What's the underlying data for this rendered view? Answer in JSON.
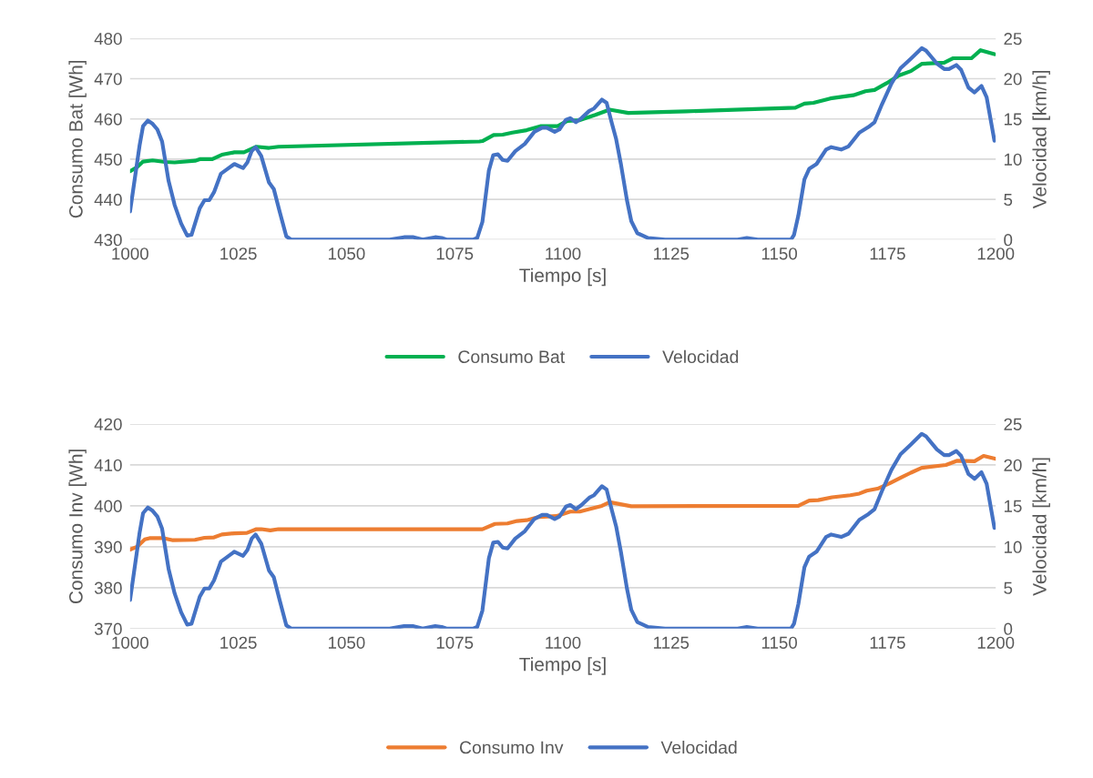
{
  "chart_data": [
    {
      "type": "line",
      "xlabel": "Tiempo [s]",
      "ylabel": "Consumo Bat [Wh]",
      "y2label": "Velocidad [km/h]",
      "xlim": [
        1000,
        1200
      ],
      "xticks": [
        1000,
        1025,
        1050,
        1075,
        1100,
        1125,
        1150,
        1175,
        1200
      ],
      "ylim": [
        430,
        480
      ],
      "yticks": [
        430,
        440,
        450,
        460,
        470,
        480
      ],
      "y2lim": [
        0,
        25
      ],
      "y2ticks": [
        0,
        5,
        10,
        15,
        20,
        25
      ],
      "grid": "y",
      "legend": "bottom",
      "line_style": "solid",
      "marker": "none",
      "series": [
        {
          "name": "Consumo Bat",
          "color": "#00b050",
          "x": [
            1000,
            1001.6,
            1003,
            1005.2,
            1008.1,
            1010.3,
            1015,
            1016.1,
            1019,
            1021.2,
            1024.1,
            1026.3,
            1029.2,
            1032.1,
            1034.3,
            1080.7,
            1081.4,
            1084,
            1086.1,
            1088.3,
            1091.6,
            1094.8,
            1098.8,
            1101,
            1103.9,
            1107.5,
            1110.8,
            1115.1,
            1128.5,
            1153.7,
            1155.8,
            1157.9,
            1161.8,
            1167.1,
            1169.9,
            1172,
            1174.8,
            1177.6,
            1180.4,
            1182.9,
            1188.1,
            1190.2,
            1194.4,
            1196.5,
            1199.7
          ],
          "values": [
            447.0,
            448.0,
            449.4,
            449.7,
            449.3,
            449.2,
            449.6,
            450.0,
            450.0,
            451.1,
            451.7,
            451.7,
            453.1,
            452.8,
            453.1,
            454.4,
            454.5,
            456.0,
            456.1,
            456.6,
            457.2,
            458.2,
            458.2,
            459.5,
            459.7,
            461.0,
            462.3,
            461.5,
            461.9,
            462.8,
            463.8,
            464.0,
            465.1,
            465.9,
            466.9,
            467.2,
            468.9,
            470.8,
            471.9,
            473.7,
            474.0,
            475.1,
            475.1,
            477.1,
            476.1
          ]
        },
        {
          "name": "Velocidad",
          "color": "#4472c4",
          "axis": "y2",
          "x": [
            1000,
            1002.2,
            1003,
            1004.1,
            1005.2,
            1006.3,
            1007.4,
            1008.9,
            1010.3,
            1011.8,
            1013.2,
            1014.2,
            1016.1,
            1017.2,
            1018.3,
            1019.4,
            1021,
            1022.3,
            1024.1,
            1026.1,
            1027.1,
            1028.1,
            1029,
            1030.3,
            1032.1,
            1033.2,
            1034.6,
            1036.1,
            1037.2,
            1060,
            1063.3,
            1065.5,
            1067.6,
            1070.5,
            1072,
            1073.1,
            1079.2,
            1080.2,
            1081.4,
            1082.9,
            1083.9,
            1085,
            1086.1,
            1087.2,
            1089,
            1091.2,
            1093.4,
            1095.2,
            1096.3,
            1098.1,
            1099.2,
            1100.7,
            1101.7,
            1103,
            1104.3,
            1106.1,
            1107.2,
            1109,
            1110.1,
            1111.3,
            1112.3,
            1113.4,
            1114.8,
            1115.8,
            1117.2,
            1119.7,
            1123.6,
            1140.4,
            1142.5,
            1145,
            1152.7,
            1153.4,
            1154.4,
            1155.8,
            1156.9,
            1158.6,
            1160.8,
            1162,
            1164.3,
            1166,
            1168.5,
            1170.6,
            1172,
            1173.7,
            1175.9,
            1178,
            1180.4,
            1182.9,
            1183.9,
            1186.4,
            1188.1,
            1189.2,
            1190.9,
            1192,
            1193.7,
            1195.1,
            1196.7,
            1197.9,
            1199.7
          ],
          "values": [
            3.5,
            11.7,
            14.1,
            14.8,
            14.4,
            13.7,
            12.2,
            7.3,
            4.3,
            2.0,
            0.5,
            0.6,
            3.9,
            4.9,
            4.9,
            5.9,
            8.2,
            8.7,
            9.4,
            8.9,
            9.6,
            11.0,
            11.5,
            10.4,
            7.1,
            6.3,
            3.4,
            0.4,
            0,
            0,
            0.3,
            0.3,
            0,
            0.3,
            0.2,
            0,
            0,
            0.2,
            2.2,
            8.6,
            10.5,
            10.6,
            9.9,
            9.8,
            11.0,
            11.9,
            13.4,
            13.9,
            13.9,
            13.4,
            13.7,
            14.9,
            15.1,
            14.6,
            15.1,
            16.0,
            16.3,
            17.4,
            17.0,
            14.5,
            12.5,
            9.4,
            4.9,
            2.3,
            0.8,
            0.2,
            0,
            0,
            0.2,
            0,
            0,
            0.6,
            3.0,
            7.5,
            8.8,
            9.4,
            11.2,
            11.5,
            11.2,
            11.6,
            13.3,
            14.0,
            14.6,
            16.8,
            19.4,
            21.3,
            22.5,
            23.8,
            23.5,
            21.9,
            21.2,
            21.2,
            21.7,
            21.1,
            18.9,
            18.3,
            19.1,
            17.7,
            12.3
          ]
        }
      ]
    },
    {
      "type": "line",
      "xlabel": "Tiempo [s]",
      "ylabel": "Consumo Inv [Wh]",
      "y2label": "Velocidad [km/h]",
      "xlim": [
        1000,
        1200
      ],
      "xticks": [
        1000,
        1025,
        1050,
        1075,
        1100,
        1125,
        1150,
        1175,
        1200
      ],
      "ylim": [
        370,
        420
      ],
      "yticks": [
        370,
        380,
        390,
        400,
        410,
        420
      ],
      "y2lim": [
        0,
        25
      ],
      "y2ticks": [
        0,
        5,
        10,
        15,
        20,
        25
      ],
      "grid": "y",
      "legend": "bottom",
      "line_style": "solid",
      "marker": "none",
      "series": [
        {
          "name": "Consumo Inv",
          "color": "#ed7d31",
          "x": [
            1000,
            1001.6,
            1003.4,
            1004.5,
            1007.8,
            1009.9,
            1015,
            1017.2,
            1019.4,
            1021.2,
            1024.1,
            1027,
            1029.2,
            1030.3,
            1032.4,
            1034.3,
            1081.4,
            1084.3,
            1087.2,
            1089.4,
            1091.6,
            1094.5,
            1098.5,
            1101.7,
            1103.9,
            1106.1,
            1109,
            1110.8,
            1115.8,
            1154.4,
            1156.9,
            1159,
            1162.2,
            1166.4,
            1168.5,
            1170.2,
            1172.7,
            1175.5,
            1178.3,
            1180.4,
            1182.9,
            1188.5,
            1191,
            1195.1,
            1197.2,
            1200
          ],
          "values": [
            389.3,
            390.0,
            391.8,
            392.1,
            392.1,
            391.6,
            391.7,
            392.2,
            392.3,
            393.0,
            393.3,
            393.4,
            394.3,
            394.3,
            394.0,
            394.3,
            394.3,
            395.6,
            395.7,
            396.3,
            396.5,
            397.3,
            397.5,
            398.6,
            398.6,
            399.2,
            400.0,
            400.9,
            399.9,
            400.0,
            401.3,
            401.4,
            402.1,
            402.6,
            403.0,
            403.7,
            404.2,
            405.5,
            407.0,
            408.1,
            409.3,
            410.0,
            411.0,
            410.9,
            412.2,
            411.5
          ]
        },
        {
          "name": "Velocidad",
          "color": "#4472c4",
          "axis": "y2",
          "x": [
            1000,
            1002.2,
            1003,
            1004.1,
            1005.2,
            1006.3,
            1007.4,
            1008.9,
            1010.3,
            1011.8,
            1013.2,
            1014.2,
            1016.1,
            1017.2,
            1018.3,
            1019.4,
            1021,
            1022.3,
            1024.1,
            1026.1,
            1027.1,
            1028.1,
            1029,
            1030.3,
            1032.1,
            1033.2,
            1034.6,
            1036.1,
            1037.2,
            1060,
            1063.3,
            1065.5,
            1067.6,
            1070.5,
            1072,
            1073.1,
            1079.2,
            1080.2,
            1081.4,
            1082.9,
            1083.9,
            1085,
            1086.1,
            1087.2,
            1089,
            1091.2,
            1093.4,
            1095.2,
            1096.3,
            1098.1,
            1099.2,
            1100.7,
            1101.7,
            1103,
            1104.3,
            1106.1,
            1107.2,
            1109,
            1110.1,
            1111.3,
            1112.3,
            1113.4,
            1114.8,
            1115.8,
            1117.2,
            1119.7,
            1123.6,
            1140.4,
            1142.5,
            1145,
            1152.7,
            1153.4,
            1154.4,
            1155.8,
            1156.9,
            1158.6,
            1160.8,
            1162,
            1164.3,
            1166,
            1168.5,
            1170.6,
            1172,
            1173.7,
            1175.9,
            1178,
            1180.4,
            1182.9,
            1183.9,
            1186.4,
            1188.1,
            1189.2,
            1190.9,
            1192,
            1193.7,
            1195.1,
            1196.7,
            1197.9,
            1199.7
          ],
          "values": [
            3.5,
            11.7,
            14.1,
            14.8,
            14.4,
            13.7,
            12.2,
            7.3,
            4.3,
            2.0,
            0.5,
            0.6,
            3.9,
            4.9,
            4.9,
            5.9,
            8.2,
            8.7,
            9.4,
            8.9,
            9.6,
            11.0,
            11.5,
            10.4,
            7.1,
            6.3,
            3.4,
            0.4,
            0,
            0,
            0.3,
            0.3,
            0,
            0.3,
            0.2,
            0,
            0,
            0.2,
            2.2,
            8.6,
            10.5,
            10.6,
            9.9,
            9.8,
            11.0,
            11.9,
            13.4,
            13.9,
            13.9,
            13.4,
            13.7,
            14.9,
            15.1,
            14.6,
            15.1,
            16.0,
            16.3,
            17.4,
            17.0,
            14.5,
            12.5,
            9.4,
            4.9,
            2.3,
            0.8,
            0.2,
            0,
            0,
            0.2,
            0,
            0,
            0.6,
            3.0,
            7.5,
            8.8,
            9.4,
            11.2,
            11.5,
            11.2,
            11.6,
            13.3,
            14.0,
            14.6,
            16.8,
            19.4,
            21.3,
            22.5,
            23.8,
            23.5,
            21.9,
            21.2,
            21.2,
            21.7,
            21.1,
            18.9,
            18.3,
            19.1,
            17.7,
            12.3
          ]
        }
      ]
    }
  ]
}
